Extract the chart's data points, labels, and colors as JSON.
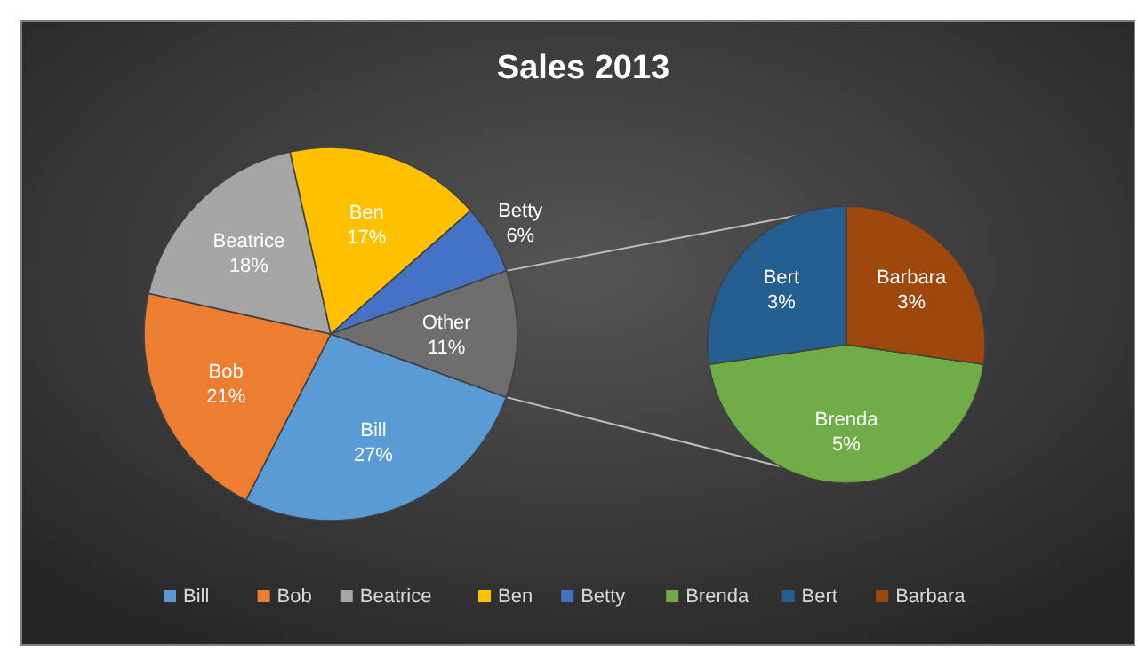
{
  "chart_data": [
    {
      "type": "pie",
      "title": "Sales 2013",
      "categories": [
        "Bill",
        "Bob",
        "Beatrice",
        "Ben",
        "Betty",
        "Other"
      ],
      "values": [
        27,
        21,
        18,
        17,
        6,
        11
      ],
      "colors": [
        "#5b9bd5",
        "#ed7d31",
        "#a5a5a5",
        "#ffc000",
        "#4472c4",
        "#6e6e6e"
      ],
      "value_labels": [
        "27%",
        "21%",
        "18%",
        "17%",
        "6%",
        "11%"
      ],
      "legend": "bottom"
    },
    {
      "type": "pie",
      "categories": [
        "Brenda",
        "Bert",
        "Barbara"
      ],
      "values": [
        5,
        3,
        3
      ],
      "colors": [
        "#70ad47",
        "#255e91",
        "#9e480e"
      ],
      "value_labels": [
        "5%",
        "3%",
        "3%"
      ],
      "legend": "bottom"
    }
  ]
}
